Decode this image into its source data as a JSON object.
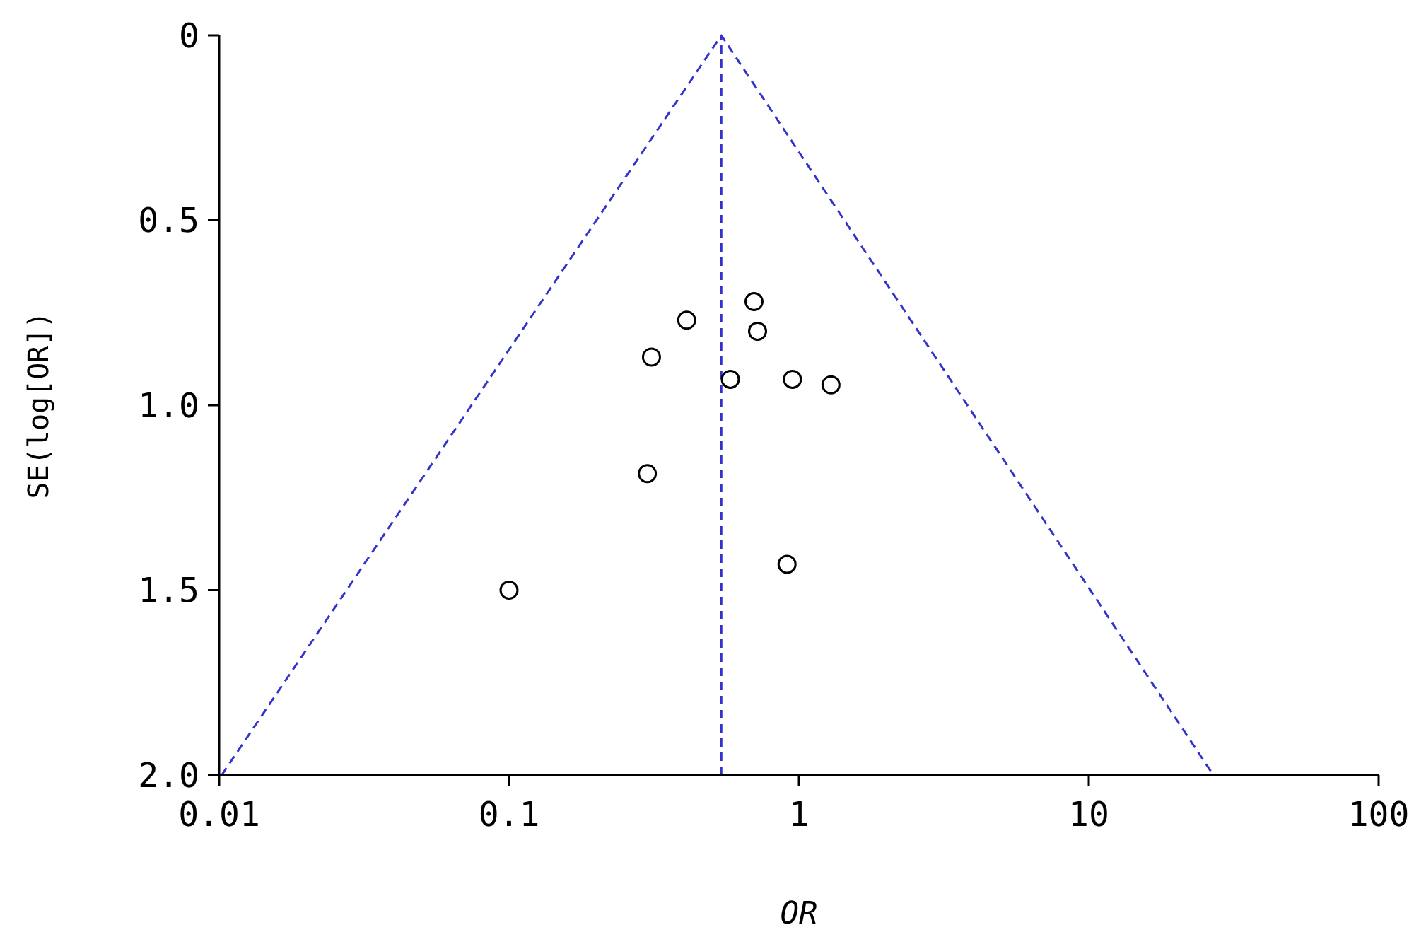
{
  "chart_data": {
    "type": "scatter",
    "xlabel": "OR",
    "ylabel": "SE(log[OR])",
    "log": "x",
    "marker": "circle",
    "xlim": [
      0.01,
      100
    ],
    "xticks": [
      0.01,
      0.1,
      1,
      10,
      100
    ],
    "ylim": [
      2,
      0
    ],
    "yticks": [
      0,
      0.5,
      {
        "value": 1,
        "label": "1.0"
      },
      1.5,
      {
        "value": 2,
        "label": "2.0"
      }
    ],
    "series": [
      {
        "type": "scatter",
        "color": "#000000",
        "x": [
          0.7,
          0.41,
          0.72,
          0.31,
          0.58,
          0.95,
          1.29,
          0.3,
          0.91,
          0.1
        ],
        "values": [
          0.72,
          0.77,
          0.8,
          0.87,
          0.93,
          0.93,
          0.945,
          1.185,
          1.43,
          1.5
        ]
      },
      {
        "type": "line",
        "color": "#3333cc",
        "line_style": "dashed",
        "marker": "none",
        "x": [
          0.0102,
          0.54,
          26.9
        ],
        "values": [
          2,
          0,
          2
        ]
      }
    ],
    "ref_lines": [
      {
        "axis": "x",
        "value": 0.54,
        "color": "#3333cc",
        "line_style": "dashed"
      }
    ]
  }
}
